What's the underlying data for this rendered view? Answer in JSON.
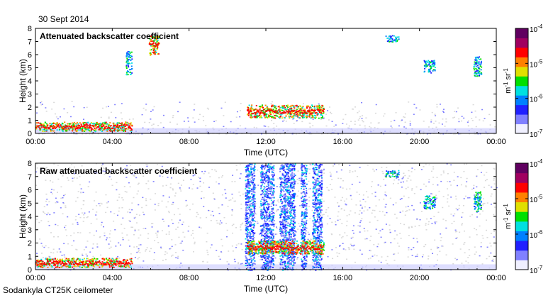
{
  "date": "30 Sept 2014",
  "instrument": "Sodankyla CT25K ceilometer",
  "chart_data": [
    {
      "type": "heatmap",
      "title": "Attenuated backscatter coefficient",
      "xlabel": "Time (UTC)",
      "ylabel": "Height (km)",
      "xlim_hours": [
        0,
        24
      ],
      "ylim": [
        0,
        8
      ],
      "xtick_values": [
        0,
        4,
        8,
        12,
        16,
        20,
        24
      ],
      "xticks": [
        "00:00",
        "04:00",
        "08:00",
        "12:00",
        "16:00",
        "20:00",
        "00:00"
      ],
      "yticks": [
        "0",
        "1",
        "2",
        "3",
        "4",
        "5",
        "6",
        "7",
        "8"
      ],
      "colorbar": {
        "label_base": "m",
        "label_exp1": "-1",
        "label_mid": " sr",
        "label_exp2": "-1",
        "scale": "log",
        "ticks": [
          {
            "base": "10",
            "exp": "-4"
          },
          {
            "base": "10",
            "exp": "-5"
          },
          {
            "base": "10",
            "exp": "-6"
          },
          {
            "base": "10",
            "exp": "-7"
          }
        ],
        "colors": [
          "#f0f0ff",
          "#8080ff",
          "#2020ff",
          "#0080ff",
          "#00e0e0",
          "#00e000",
          "#e0e000",
          "#ff8000",
          "#ff0000",
          "#a00060",
          "#600060"
        ]
      },
      "features": [
        {
          "name": "boundary-layer",
          "t_start": 0.0,
          "t_end": 5.0,
          "h_low": 0.2,
          "h_high": 0.9,
          "intensity": "high"
        },
        {
          "name": "low-cloud",
          "t_start": 11.0,
          "t_end": 15.0,
          "h_low": 1.2,
          "h_high": 2.2,
          "intensity": "high"
        },
        {
          "name": "mid-cloud-1",
          "t_start": 4.7,
          "t_end": 5.0,
          "h_low": 4.5,
          "h_high": 6.3,
          "intensity": "medium"
        },
        {
          "name": "mid-cloud-2",
          "t_start": 5.9,
          "t_end": 6.4,
          "h_low": 6.0,
          "h_high": 7.6,
          "intensity": "high"
        },
        {
          "name": "high-cloud-1",
          "t_start": 18.2,
          "t_end": 18.9,
          "h_low": 7.0,
          "h_high": 7.5,
          "intensity": "medium"
        },
        {
          "name": "high-cloud-2",
          "t_start": 20.2,
          "t_end": 20.8,
          "h_low": 4.6,
          "h_high": 5.6,
          "intensity": "medium"
        },
        {
          "name": "high-cloud-3",
          "t_start": 22.8,
          "t_end": 23.2,
          "h_low": 4.4,
          "h_high": 5.9,
          "intensity": "medium"
        }
      ]
    },
    {
      "type": "heatmap",
      "title": "Raw attenuated backscatter coefficient",
      "xlabel": "Time (UTC)",
      "ylabel": "Height (km)",
      "xlim_hours": [
        0,
        24
      ],
      "ylim": [
        0,
        8
      ],
      "xtick_values": [
        0,
        4,
        8,
        12,
        16,
        20,
        24
      ],
      "xticks": [
        "00:00",
        "04:00",
        "08:00",
        "12:00",
        "16:00",
        "20:00",
        "00:00"
      ],
      "yticks": [
        "0",
        "1",
        "2",
        "3",
        "4",
        "5",
        "6",
        "7",
        "8"
      ],
      "colorbar": {
        "label_base": "m",
        "label_exp1": "-1",
        "label_mid": " sr",
        "label_exp2": "-1",
        "scale": "log",
        "ticks": [
          {
            "base": "10",
            "exp": "-4"
          },
          {
            "base": "10",
            "exp": "-5"
          },
          {
            "base": "10",
            "exp": "-6"
          },
          {
            "base": "10",
            "exp": "-7"
          }
        ],
        "colors": [
          "#f0f0ff",
          "#8080ff",
          "#2020ff",
          "#0080ff",
          "#00e0e0",
          "#00e000",
          "#e0e000",
          "#ff8000",
          "#ff0000",
          "#a00060",
          "#600060"
        ]
      },
      "features": [
        {
          "name": "boundary-layer",
          "t_start": 0.0,
          "t_end": 5.0,
          "h_low": 0.2,
          "h_high": 0.9,
          "intensity": "high"
        },
        {
          "name": "noise-column-1",
          "t_start": 10.9,
          "t_end": 11.4,
          "h_low": 0.0,
          "h_high": 8.0,
          "intensity": "noise"
        },
        {
          "name": "noise-column-2",
          "t_start": 11.7,
          "t_end": 12.4,
          "h_low": 0.0,
          "h_high": 8.0,
          "intensity": "noise"
        },
        {
          "name": "noise-column-3",
          "t_start": 12.7,
          "t_end": 13.5,
          "h_low": 0.0,
          "h_high": 8.0,
          "intensity": "noise"
        },
        {
          "name": "noise-column-4",
          "t_start": 13.8,
          "t_end": 14.1,
          "h_low": 0.0,
          "h_high": 8.0,
          "intensity": "noise"
        },
        {
          "name": "noise-column-5",
          "t_start": 14.4,
          "t_end": 14.9,
          "h_low": 0.0,
          "h_high": 8.0,
          "intensity": "noise"
        },
        {
          "name": "low-cloud",
          "t_start": 11.0,
          "t_end": 15.0,
          "h_low": 1.2,
          "h_high": 2.2,
          "intensity": "high"
        },
        {
          "name": "high-cloud-1",
          "t_start": 18.2,
          "t_end": 18.9,
          "h_low": 7.0,
          "h_high": 7.5,
          "intensity": "medium"
        },
        {
          "name": "high-cloud-2",
          "t_start": 20.2,
          "t_end": 20.8,
          "h_low": 4.6,
          "h_high": 5.6,
          "intensity": "medium"
        },
        {
          "name": "high-cloud-3",
          "t_start": 22.8,
          "t_end": 23.2,
          "h_low": 4.4,
          "h_high": 5.9,
          "intensity": "medium"
        }
      ]
    }
  ]
}
